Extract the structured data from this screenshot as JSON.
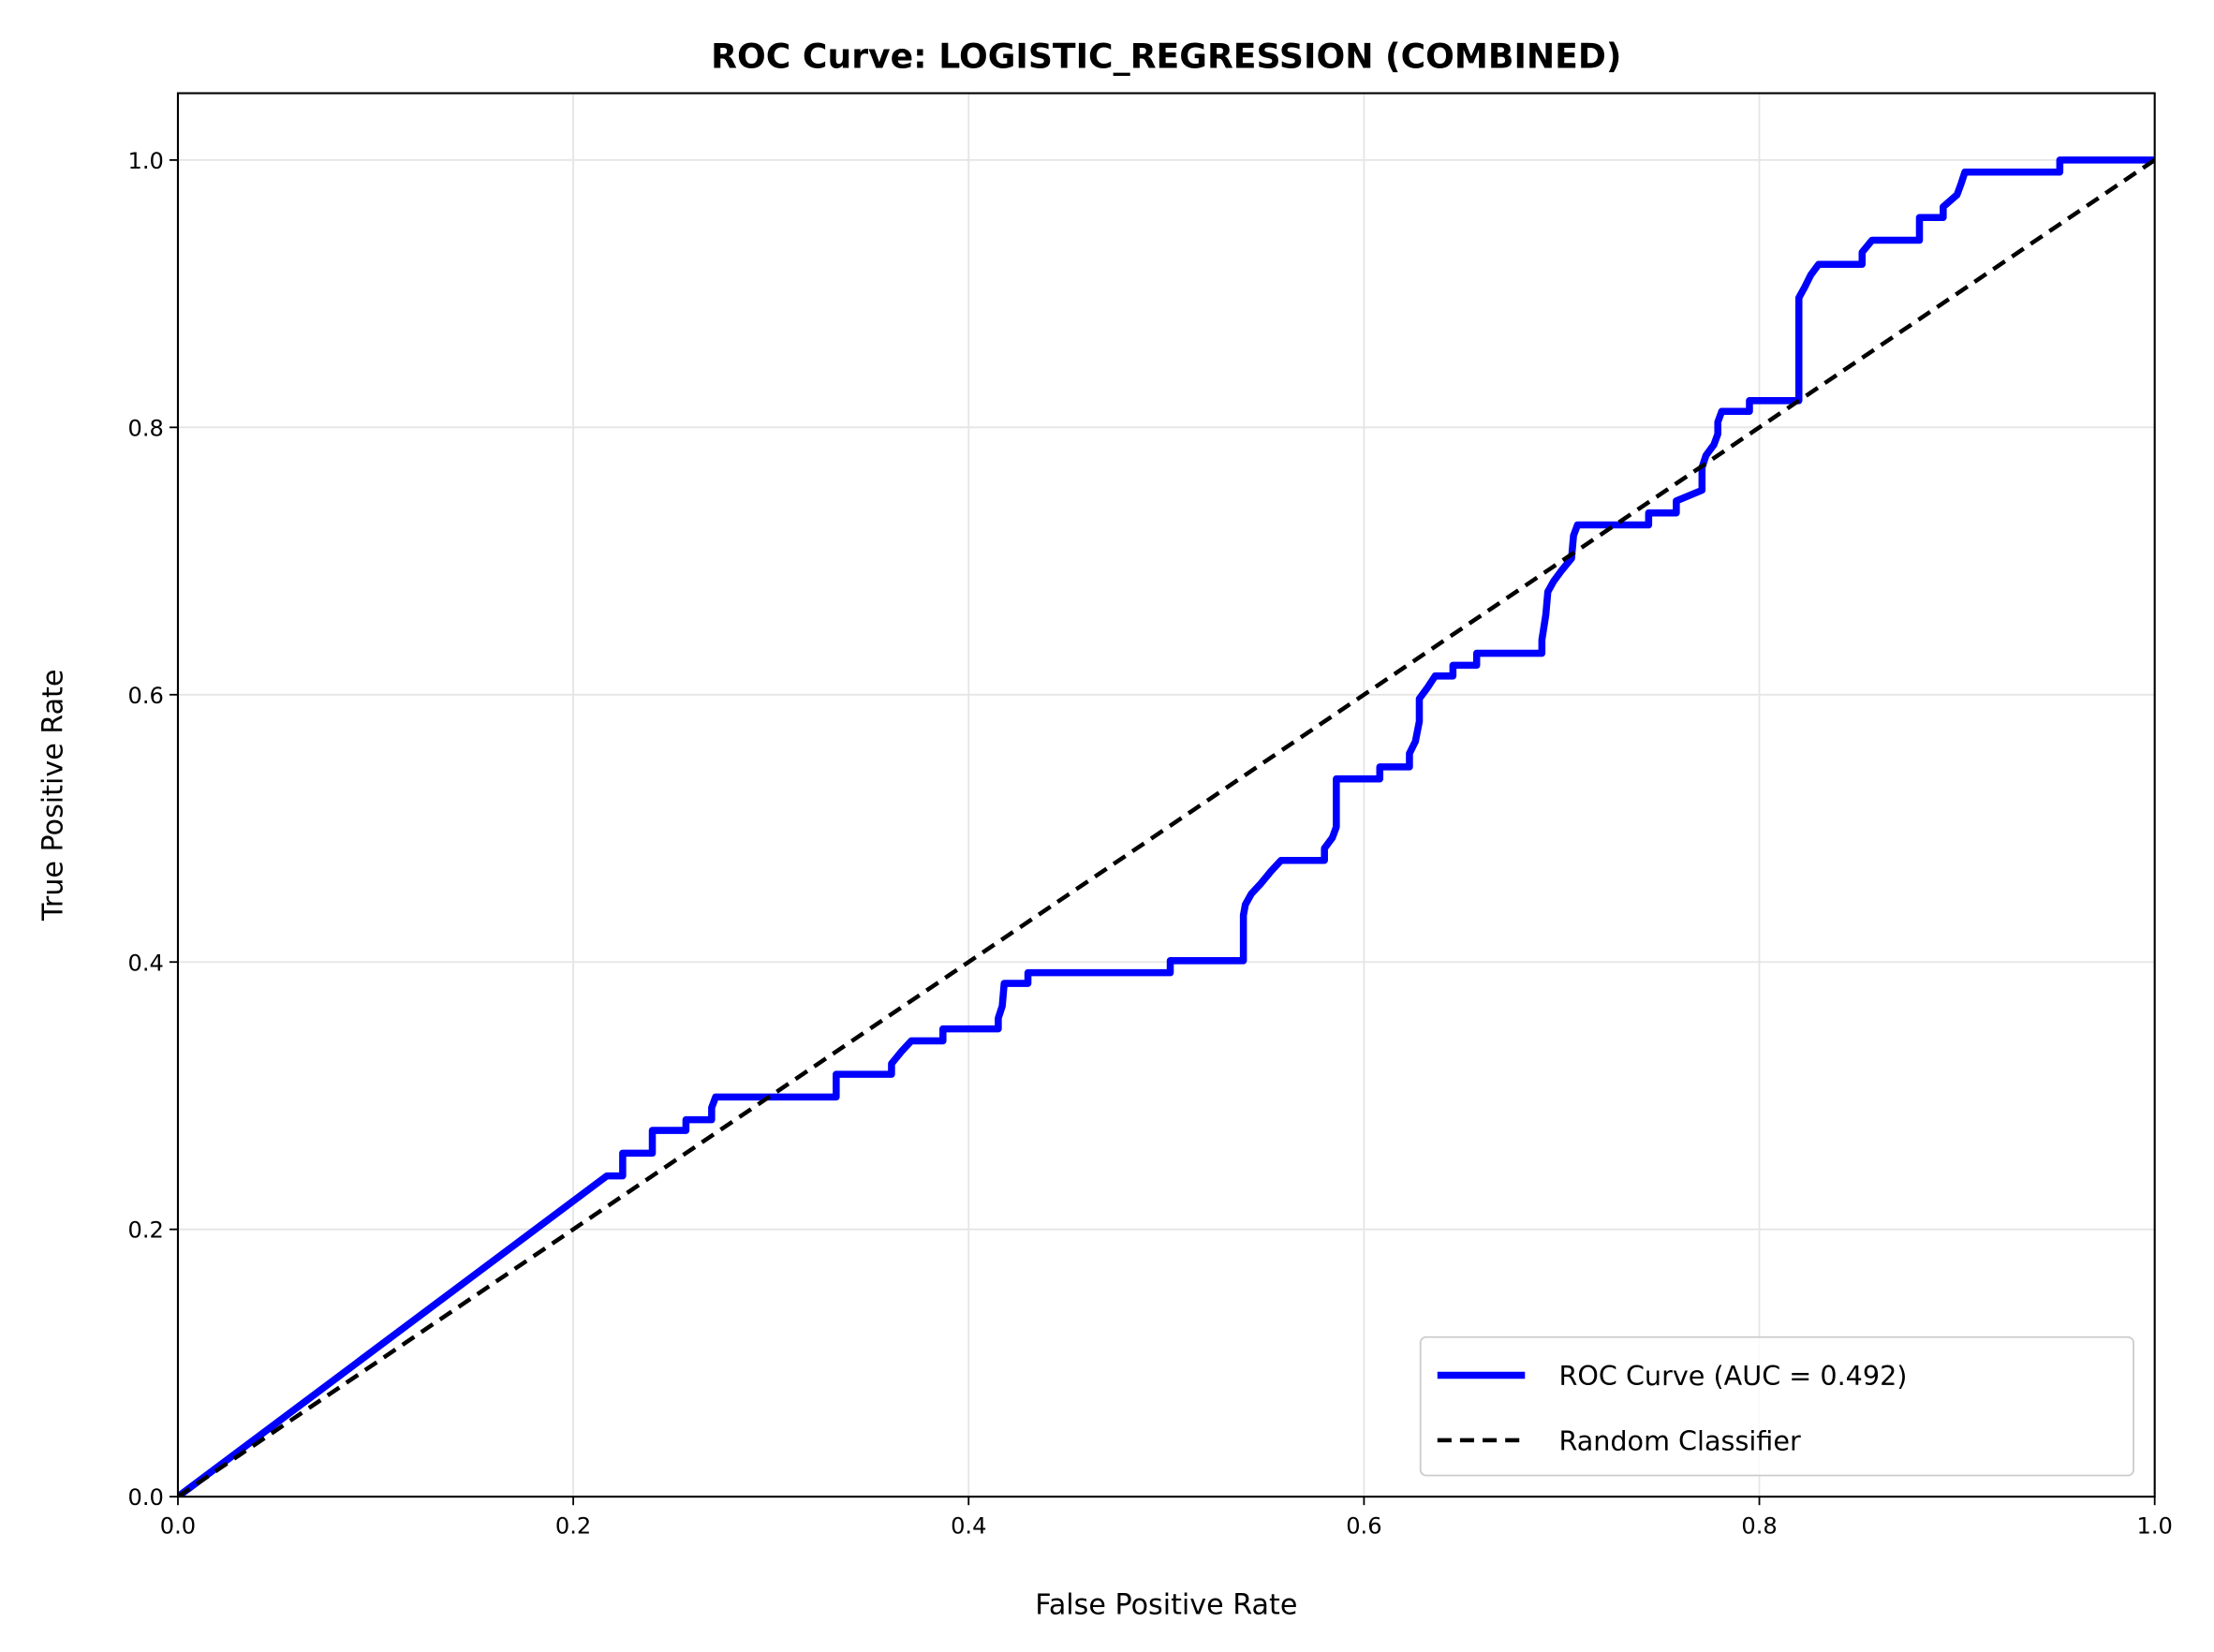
{
  "chart_data": {
    "type": "line",
    "title": "ROC Curve: LOGISTIC_REGRESSION (COMBINED)",
    "x_label": "False Positive Rate",
    "y_label": "True Positive Rate",
    "xlim": [
      0,
      1
    ],
    "ylim": [
      0,
      1.05
    ],
    "xticks": [
      {
        "value": 0,
        "label": "0.0"
      },
      0.2,
      0.4,
      0.6,
      0.8,
      {
        "value": 1,
        "label": "1.0"
      }
    ],
    "yticks": [
      {
        "value": 0,
        "label": "0.0"
      },
      0.2,
      0.4,
      0.6,
      0.8,
      {
        "value": 1,
        "label": "1.0"
      }
    ],
    "grid": true,
    "legend": "lower right",
    "series": [
      {
        "name": "ROC Curve (AUC = 0.492)",
        "color": "#0000ff",
        "style": "solid",
        "x": [
          0,
          0.217,
          0.225,
          0.225,
          0.24,
          0.24,
          0.257,
          0.257,
          0.27,
          0.27,
          0.272,
          0.333,
          0.333,
          0.361,
          0.361,
          0.366,
          0.371,
          0.387,
          0.387,
          0.415,
          0.415,
          0.417,
          0.418,
          0.43,
          0.43,
          0.502,
          0.502,
          0.539,
          0.539,
          0.539,
          0.54,
          0.543,
          0.548,
          0.553,
          0.558,
          0.58,
          0.58,
          0.584,
          0.586,
          0.586,
          0.608,
          0.608,
          0.623,
          0.623,
          0.626,
          0.628,
          0.628,
          0.632,
          0.636,
          0.645,
          0.645,
          0.657,
          0.657,
          0.69,
          0.69,
          0.692,
          0.693,
          0.696,
          0.7,
          0.705,
          0.706,
          0.708,
          0.744,
          0.744,
          0.758,
          0.758,
          0.771,
          0.771,
          0.773,
          0.777,
          0.779,
          0.779,
          0.781,
          0.795,
          0.795,
          0.82,
          0.82,
          0.82,
          0.823,
          0.826,
          0.83,
          0.852,
          0.852,
          0.857,
          0.881,
          0.881,
          0.893,
          0.893,
          0.9,
          0.902,
          0.904,
          0.952,
          0.952,
          1.0
        ],
        "values": [
          0,
          0.24,
          0.24,
          0.257,
          0.257,
          0.274,
          0.274,
          0.282,
          0.282,
          0.291,
          0.299,
          0.299,
          0.316,
          0.316,
          0.324,
          0.333,
          0.341,
          0.341,
          0.35,
          0.35,
          0.358,
          0.367,
          0.384,
          0.384,
          0.392,
          0.392,
          0.401,
          0.401,
          0.418,
          0.435,
          0.443,
          0.451,
          0.459,
          0.468,
          0.476,
          0.476,
          0.485,
          0.493,
          0.501,
          0.537,
          0.537,
          0.546,
          0.546,
          0.556,
          0.565,
          0.58,
          0.597,
          0.605,
          0.614,
          0.614,
          0.622,
          0.622,
          0.631,
          0.631,
          0.641,
          0.66,
          0.677,
          0.685,
          0.693,
          0.702,
          0.719,
          0.727,
          0.727,
          0.736,
          0.736,
          0.745,
          0.753,
          0.77,
          0.779,
          0.787,
          0.795,
          0.804,
          0.812,
          0.812,
          0.82,
          0.82,
          0.829,
          0.897,
          0.905,
          0.914,
          0.922,
          0.922,
          0.931,
          0.94,
          0.94,
          0.957,
          0.957,
          0.965,
          0.974,
          0.982,
          0.991,
          0.991,
          1.0,
          1.0
        ]
      },
      {
        "name": "Random Classifier",
        "color": "#000000",
        "style": "dashed",
        "x": [
          0,
          1
        ],
        "values": [
          0,
          1
        ]
      }
    ]
  }
}
